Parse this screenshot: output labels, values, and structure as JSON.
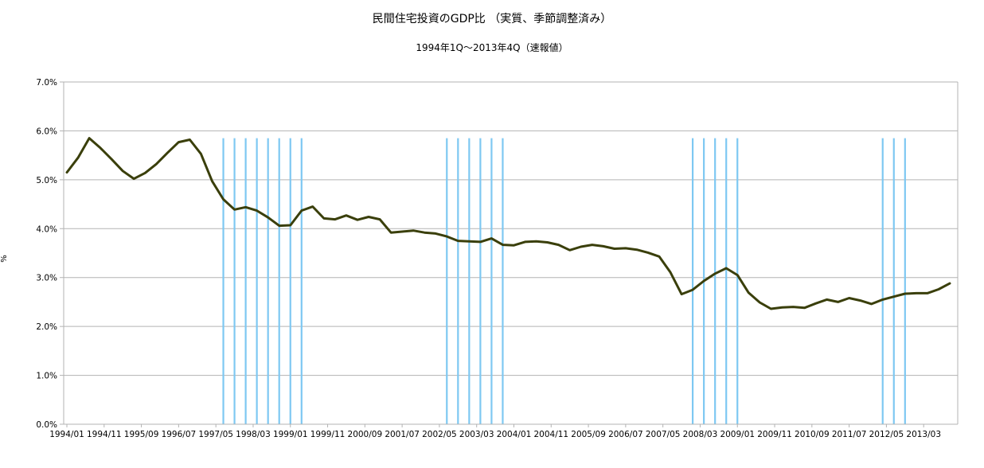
{
  "chart_data": {
    "type": "line",
    "title": "民間住宅投資のGDP比 （実質、季節調整済み）",
    "subtitle": "1994年1Q～2013年4Q（速報値）",
    "ylabel": "%",
    "xlabel": "",
    "ylim": [
      0,
      7
    ],
    "y_ticks": [
      "0.0%",
      "1.0%",
      "2.0%",
      "3.0%",
      "4.0%",
      "5.0%",
      "6.0%",
      "7.0%"
    ],
    "x_tick_labels": [
      "1994/01",
      "1994/11",
      "1995/09",
      "1996/07",
      "1997/05",
      "1998/03",
      "1999/01",
      "1999/11",
      "2000/09",
      "2001/07",
      "2002/05",
      "2003/03",
      "2004/01",
      "2004/11",
      "2005/09",
      "2006/07",
      "2007/05",
      "2008/03",
      "2009/01",
      "2009/11",
      "2010/09",
      "2011/07",
      "2012/05",
      "2013/03"
    ],
    "grid": true,
    "line_color": "#3a3f0b",
    "marker_color": "#7ec8f2",
    "series": [
      {
        "values": [
          5.15,
          5.45,
          5.85,
          5.65,
          5.42,
          5.18,
          5.02,
          5.14,
          5.32,
          5.55,
          5.77,
          5.82,
          5.53,
          4.97,
          4.6,
          4.39,
          4.44,
          4.37,
          4.23,
          4.06,
          4.07,
          4.37,
          4.45,
          4.21,
          4.19,
          4.27,
          4.18,
          4.24,
          4.19,
          3.92,
          3.94,
          3.96,
          3.92,
          3.9,
          3.84,
          3.75,
          3.74,
          3.73,
          3.8,
          3.67,
          3.66,
          3.73,
          3.74,
          3.72,
          3.67,
          3.56,
          3.63,
          3.67,
          3.64,
          3.59,
          3.6,
          3.57,
          3.51,
          3.43,
          3.11,
          2.66,
          2.75,
          2.93,
          3.08,
          3.19,
          3.05,
          2.69,
          2.49,
          2.36,
          2.39,
          2.4,
          2.38,
          2.47,
          2.55,
          2.5,
          2.58,
          2.53,
          2.46,
          2.55,
          2.61,
          2.67,
          2.68,
          2.68,
          2.76,
          2.88
        ]
      }
    ],
    "vertical_marker_quarters": [
      14,
      15,
      16,
      17,
      18,
      19,
      20,
      21,
      34,
      35,
      36,
      37,
      38,
      39,
      56,
      57,
      58,
      59,
      60,
      73,
      74,
      75
    ]
  }
}
